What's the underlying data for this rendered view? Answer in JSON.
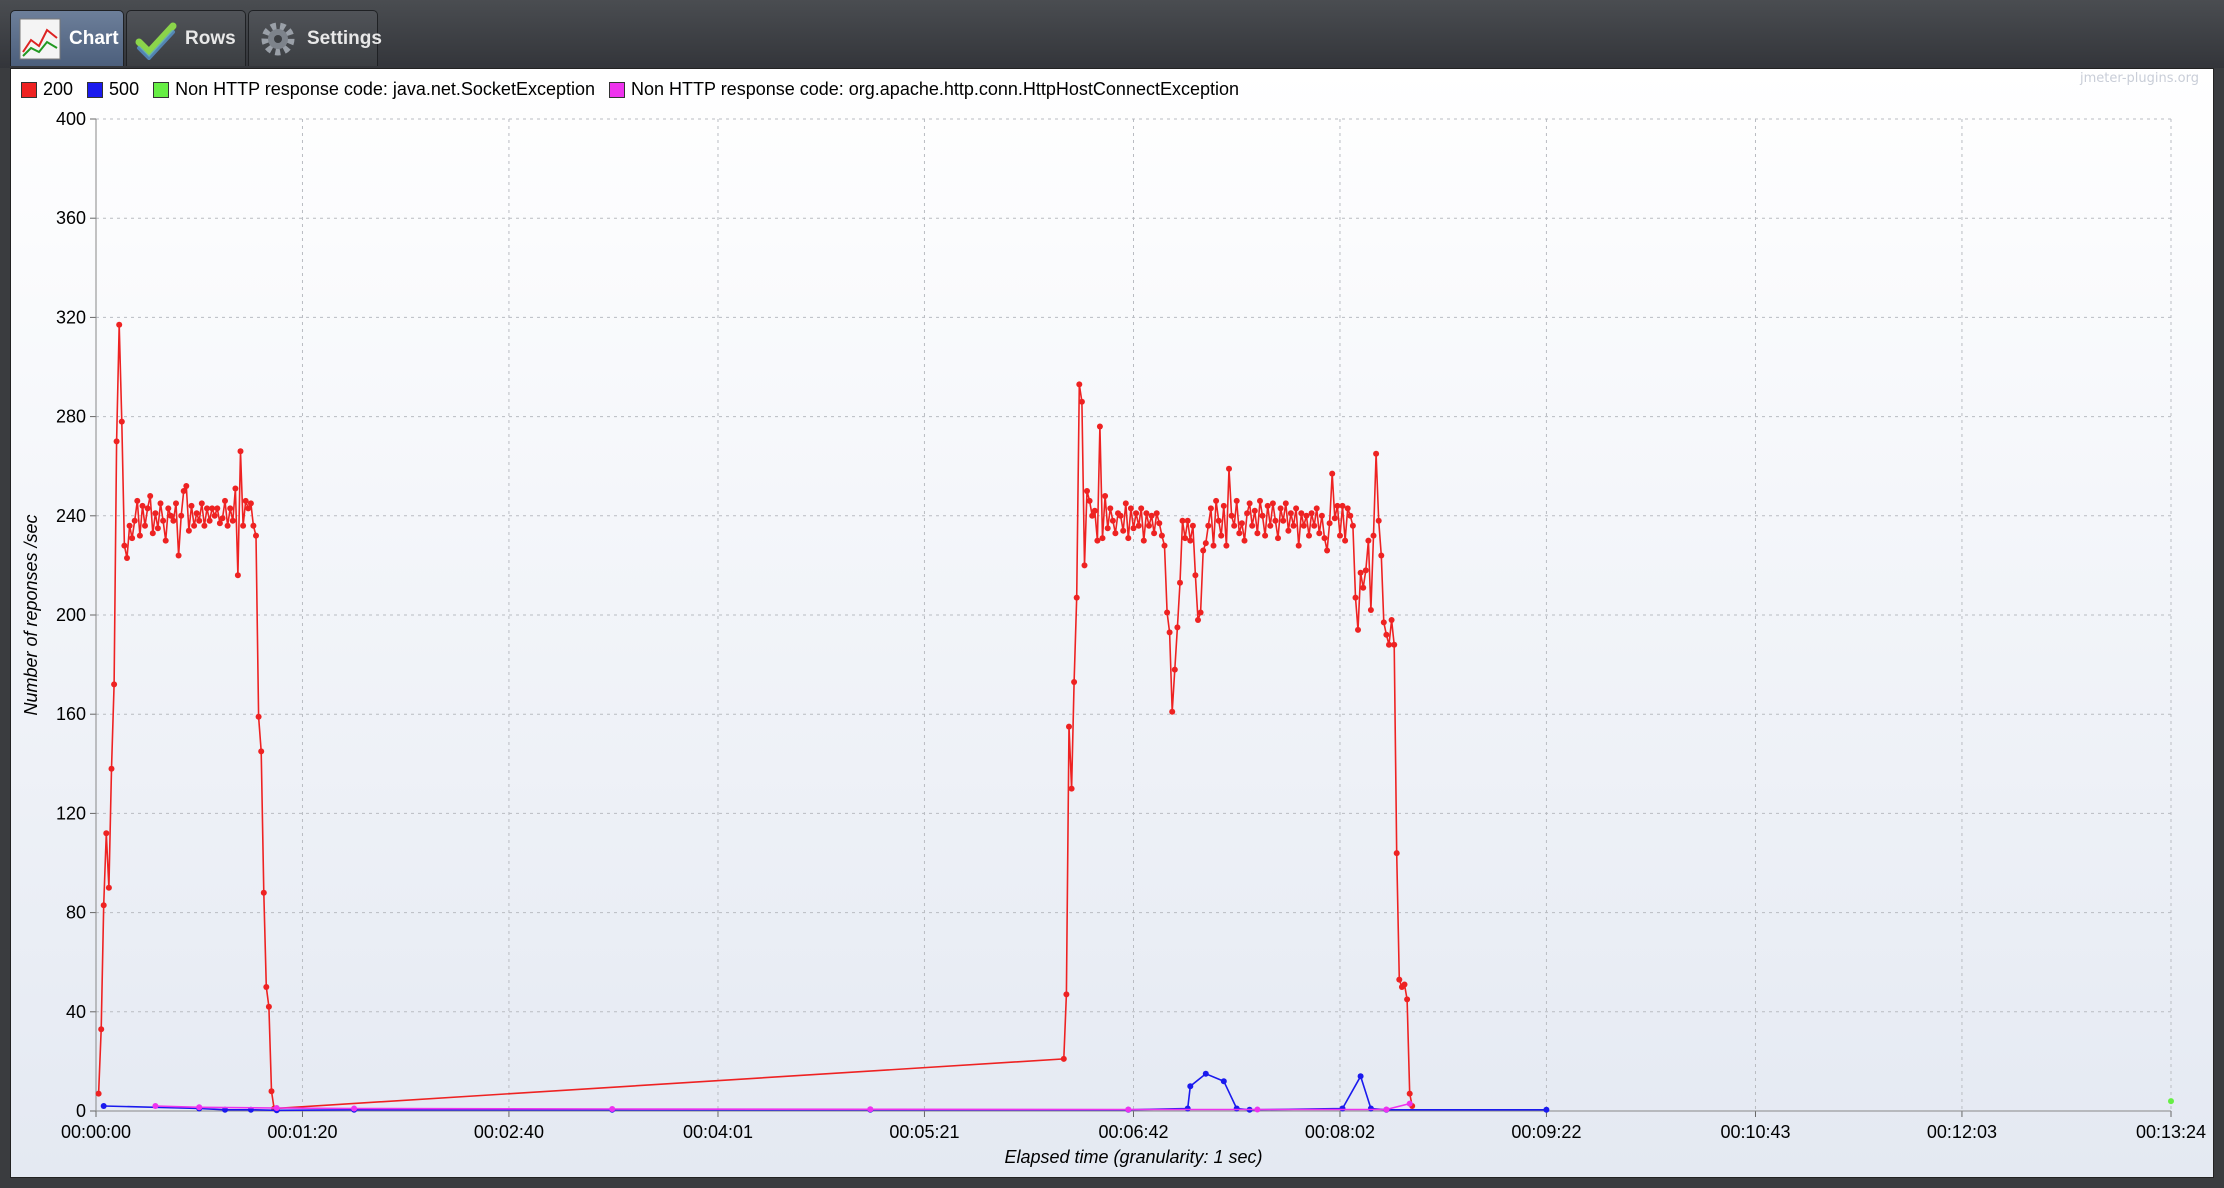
{
  "tabs": [
    {
      "label": "Chart",
      "icon": "chart-icon",
      "active": true
    },
    {
      "label": "Rows",
      "icon": "checkmark-icon",
      "active": false
    },
    {
      "label": "Settings",
      "icon": "gear-icon",
      "active": false
    }
  ],
  "watermark": "jmeter-plugins.org",
  "chart_data": {
    "type": "line",
    "title": "",
    "xlabel": "Elapsed time (granularity: 1 sec)",
    "ylabel": "Number of reponses /sec",
    "ylim": [
      0,
      400
    ],
    "xlim": [
      0,
      804
    ],
    "y_ticks": [
      "0",
      "40",
      "80",
      "120",
      "160",
      "200",
      "240",
      "280",
      "320",
      "360",
      "400"
    ],
    "x_ticks": [
      {
        "t": 0,
        "label": "00:00:00"
      },
      {
        "t": 80,
        "label": "00:01:20"
      },
      {
        "t": 160,
        "label": "00:02:40"
      },
      {
        "t": 241,
        "label": "00:04:01"
      },
      {
        "t": 321,
        "label": "00:05:21"
      },
      {
        "t": 402,
        "label": "00:06:42"
      },
      {
        "t": 482,
        "label": "00:08:02"
      },
      {
        "t": 562,
        "label": "00:09:22"
      },
      {
        "t": 643,
        "label": "00:10:43"
      },
      {
        "t": 723,
        "label": "00:12:03"
      },
      {
        "t": 804,
        "label": "00:13:24"
      }
    ],
    "grid": true,
    "legend_position": "top-left",
    "series": [
      {
        "name": "200",
        "color": "#ee2222",
        "points": [
          [
            1,
            7
          ],
          [
            2,
            33
          ],
          [
            3,
            83
          ],
          [
            4,
            112
          ],
          [
            5,
            90
          ],
          [
            6,
            138
          ],
          [
            7,
            172
          ],
          [
            8,
            270
          ],
          [
            9,
            317
          ],
          [
            10,
            278
          ],
          [
            11,
            228
          ],
          [
            12,
            223
          ],
          [
            13,
            236
          ],
          [
            14,
            231
          ],
          [
            15,
            238
          ],
          [
            16,
            246
          ],
          [
            17,
            232
          ],
          [
            18,
            244
          ],
          [
            19,
            236
          ],
          [
            20,
            243
          ],
          [
            21,
            248
          ],
          [
            22,
            233
          ],
          [
            23,
            241
          ],
          [
            24,
            235
          ],
          [
            25,
            245
          ],
          [
            26,
            238
          ],
          [
            27,
            230
          ],
          [
            28,
            243
          ],
          [
            29,
            240
          ],
          [
            30,
            238
          ],
          [
            31,
            245
          ],
          [
            32,
            224
          ],
          [
            33,
            240
          ],
          [
            34,
            250
          ],
          [
            35,
            252
          ],
          [
            36,
            234
          ],
          [
            37,
            244
          ],
          [
            38,
            236
          ],
          [
            39,
            241
          ],
          [
            40,
            238
          ],
          [
            41,
            245
          ],
          [
            42,
            236
          ],
          [
            43,
            243
          ],
          [
            44,
            238
          ],
          [
            45,
            243
          ],
          [
            46,
            240
          ],
          [
            47,
            243
          ],
          [
            48,
            237
          ],
          [
            49,
            239
          ],
          [
            50,
            246
          ],
          [
            51,
            236
          ],
          [
            52,
            243
          ],
          [
            53,
            238
          ],
          [
            54,
            251
          ],
          [
            55,
            216
          ],
          [
            56,
            266
          ],
          [
            57,
            236
          ],
          [
            58,
            246
          ],
          [
            59,
            243
          ],
          [
            60,
            245
          ],
          [
            61,
            236
          ],
          [
            62,
            232
          ],
          [
            63,
            159
          ],
          [
            64,
            145
          ],
          [
            65,
            88
          ],
          [
            66,
            50
          ],
          [
            67,
            42
          ],
          [
            68,
            8
          ],
          [
            69,
            1
          ],
          [
            375,
            21
          ],
          [
            376,
            47
          ],
          [
            377,
            155
          ],
          [
            378,
            130
          ],
          [
            379,
            173
          ],
          [
            380,
            207
          ],
          [
            381,
            293
          ],
          [
            382,
            286
          ],
          [
            383,
            220
          ],
          [
            384,
            250
          ],
          [
            385,
            246
          ],
          [
            386,
            240
          ],
          [
            387,
            242
          ],
          [
            388,
            230
          ],
          [
            389,
            276
          ],
          [
            390,
            231
          ],
          [
            391,
            248
          ],
          [
            392,
            235
          ],
          [
            393,
            243
          ],
          [
            394,
            238
          ],
          [
            395,
            233
          ],
          [
            396,
            241
          ],
          [
            397,
            240
          ],
          [
            398,
            234
          ],
          [
            399,
            245
          ],
          [
            400,
            231
          ],
          [
            401,
            243
          ],
          [
            402,
            235
          ],
          [
            403,
            241
          ],
          [
            404,
            236
          ],
          [
            405,
            243
          ],
          [
            406,
            230
          ],
          [
            407,
            241
          ],
          [
            408,
            236
          ],
          [
            409,
            240
          ],
          [
            410,
            233
          ],
          [
            411,
            241
          ],
          [
            412,
            237
          ],
          [
            413,
            232
          ],
          [
            414,
            228
          ],
          [
            415,
            201
          ],
          [
            416,
            193
          ],
          [
            417,
            161
          ],
          [
            418,
            178
          ],
          [
            419,
            195
          ],
          [
            420,
            213
          ],
          [
            421,
            238
          ],
          [
            422,
            231
          ],
          [
            423,
            238
          ],
          [
            424,
            230
          ],
          [
            425,
            236
          ],
          [
            426,
            216
          ],
          [
            427,
            198
          ],
          [
            428,
            201
          ],
          [
            429,
            226
          ],
          [
            430,
            229
          ],
          [
            431,
            236
          ],
          [
            432,
            243
          ],
          [
            433,
            228
          ],
          [
            434,
            246
          ],
          [
            435,
            238
          ],
          [
            436,
            232
          ],
          [
            437,
            244
          ],
          [
            438,
            228
          ],
          [
            439,
            259
          ],
          [
            440,
            240
          ],
          [
            441,
            236
          ],
          [
            442,
            246
          ],
          [
            443,
            233
          ],
          [
            444,
            237
          ],
          [
            445,
            230
          ],
          [
            446,
            241
          ],
          [
            447,
            245
          ],
          [
            448,
            236
          ],
          [
            449,
            242
          ],
          [
            450,
            233
          ],
          [
            451,
            246
          ],
          [
            452,
            240
          ],
          [
            453,
            232
          ],
          [
            454,
            244
          ],
          [
            455,
            236
          ],
          [
            456,
            245
          ],
          [
            457,
            238
          ],
          [
            458,
            231
          ],
          [
            459,
            243
          ],
          [
            460,
            238
          ],
          [
            461,
            245
          ],
          [
            462,
            234
          ],
          [
            463,
            241
          ],
          [
            464,
            236
          ],
          [
            465,
            243
          ],
          [
            466,
            228
          ],
          [
            467,
            241
          ],
          [
            468,
            236
          ],
          [
            469,
            240
          ],
          [
            470,
            232
          ],
          [
            471,
            241
          ],
          [
            472,
            236
          ],
          [
            473,
            243
          ],
          [
            474,
            233
          ],
          [
            475,
            240
          ],
          [
            476,
            231
          ],
          [
            477,
            226
          ],
          [
            478,
            237
          ],
          [
            479,
            257
          ],
          [
            480,
            239
          ],
          [
            481,
            244
          ],
          [
            482,
            232
          ],
          [
            483,
            244
          ],
          [
            484,
            230
          ],
          [
            485,
            243
          ],
          [
            486,
            240
          ],
          [
            487,
            236
          ],
          [
            488,
            207
          ],
          [
            489,
            194
          ],
          [
            490,
            217
          ],
          [
            491,
            211
          ],
          [
            492,
            218
          ],
          [
            493,
            230
          ],
          [
            494,
            202
          ],
          [
            495,
            232
          ],
          [
            496,
            265
          ],
          [
            497,
            238
          ],
          [
            498,
            224
          ],
          [
            499,
            197
          ],
          [
            500,
            192
          ],
          [
            501,
            188
          ],
          [
            502,
            198
          ],
          [
            503,
            188
          ],
          [
            504,
            104
          ],
          [
            505,
            53
          ],
          [
            506,
            50
          ],
          [
            507,
            51
          ],
          [
            508,
            45
          ],
          [
            509,
            7
          ],
          [
            510,
            2
          ]
        ]
      },
      {
        "name": "500",
        "color": "#1a1aee",
        "points": [
          [
            3,
            2
          ],
          [
            40,
            1
          ],
          [
            50,
            0.5
          ],
          [
            60,
            0.5
          ],
          [
            70,
            0.3
          ],
          [
            100,
            0.5
          ],
          [
            200,
            0.5
          ],
          [
            300,
            0.5
          ],
          [
            400,
            0.5
          ],
          [
            423,
            1
          ],
          [
            424,
            10
          ],
          [
            430,
            15
          ],
          [
            437,
            12
          ],
          [
            442,
            1
          ],
          [
            447,
            0.5
          ],
          [
            483,
            1
          ],
          [
            490,
            14
          ],
          [
            494,
            1
          ],
          [
            500,
            0.5
          ],
          [
            562,
            0.5
          ]
        ]
      },
      {
        "name": "Non HTTP response code: java.net.SocketException",
        "color": "#66ee44",
        "points": [
          [
            804,
            4
          ]
        ]
      },
      {
        "name": "Non HTTP response code: org.apache.http.conn.HttpHostConnectException",
        "color": "#ee33ee",
        "points": [
          [
            23,
            2
          ],
          [
            40,
            1.5
          ],
          [
            70,
            1.2
          ],
          [
            100,
            1
          ],
          [
            200,
            0.8
          ],
          [
            300,
            0.7
          ],
          [
            400,
            0.6
          ],
          [
            450,
            0.6
          ],
          [
            500,
            0.6
          ],
          [
            509,
            3
          ]
        ]
      }
    ]
  }
}
